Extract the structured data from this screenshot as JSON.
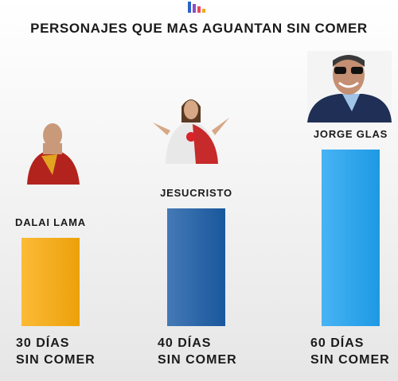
{
  "chart_data": {
    "type": "bar",
    "title": "PERSONAJES QUE MAS AGUANTAN SIN COMER",
    "categories": [
      "DALAI LAMA",
      "JESUCRISTO",
      "JORGE GLAS"
    ],
    "values": [
      30,
      40,
      60
    ],
    "value_labels": [
      "30 DÍAS\nSIN COMER",
      "40 DÍAS\nSIN COMER",
      "60 DÍAS\nSIN COMER"
    ],
    "colors": [
      "#fbab0a",
      "#1b5ca6",
      "#1fa3f2"
    ]
  }
}
